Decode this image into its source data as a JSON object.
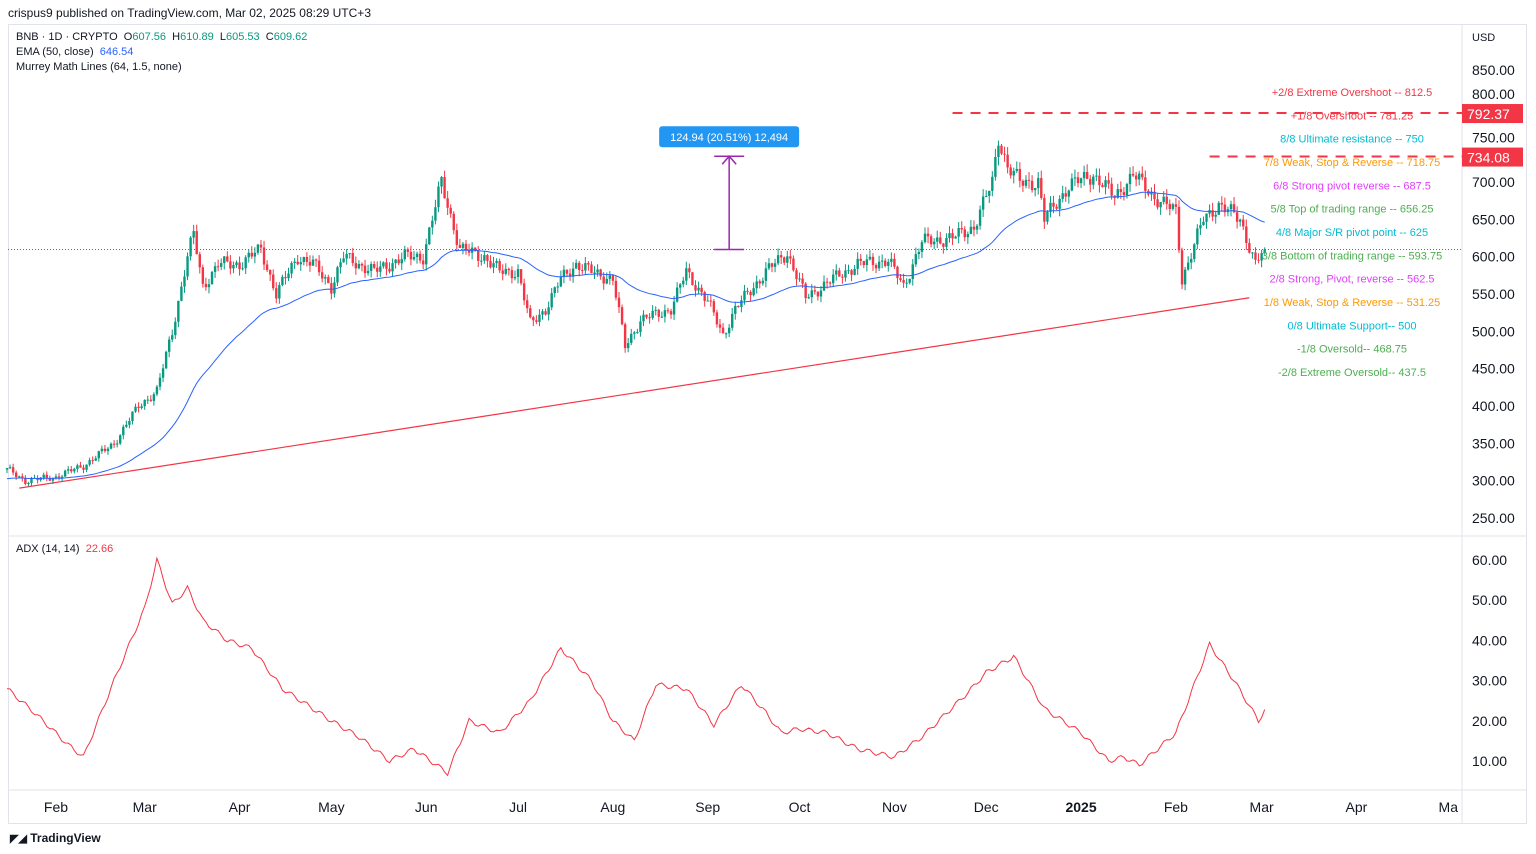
{
  "header": {
    "published": "crispus9 published on TradingView.com, Mar 02, 2025 08:29 UTC+3"
  },
  "legend": {
    "symbol": "BNB · 1D · CRYPTO",
    "o_label": "O",
    "o": "607.56",
    "h_label": "H",
    "h": "610.89",
    "l_label": "L",
    "l": "605.53",
    "c_label": "C",
    "c": "609.62",
    "ema_label": "EMA (50, close)",
    "ema_value": "646.54",
    "murrey_label": "Murrey Math Lines (64, 1.5, none)",
    "adx_label": "ADX (14, 14)",
    "adx_value": "22.66"
  },
  "currency": "USD",
  "footer": {
    "brand": "TradingView"
  },
  "colors": {
    "up": "#089981",
    "down": "#f23645",
    "ema": "#2962ff",
    "adx": "#f23645",
    "trend": "#f23645",
    "measure": "#9c27b0",
    "measure_label_bg": "#2196f3"
  },
  "chart_data": [
    {
      "type": "candlestick",
      "title": "BNB · 1D · CRYPTO",
      "ylim": [
        230,
        870
      ],
      "y_ticks": [
        "850.00",
        "800.00",
        "750.00",
        "700.00",
        "650.00",
        "600.00",
        "550.00",
        "500.00",
        "450.00",
        "400.00",
        "350.00",
        "300.00",
        "250.00"
      ],
      "x_ticks": [
        {
          "label": "Feb",
          "date": "2024-02-01"
        },
        {
          "label": "Mar",
          "date": "2024-03-01"
        },
        {
          "label": "Apr",
          "date": "2024-04-01"
        },
        {
          "label": "May",
          "date": "2024-05-01"
        },
        {
          "label": "Jun",
          "date": "2024-06-01"
        },
        {
          "label": "Jul",
          "date": "2024-07-01"
        },
        {
          "label": "Aug",
          "date": "2024-08-01"
        },
        {
          "label": "Sep",
          "date": "2024-09-01"
        },
        {
          "label": "Oct",
          "date": "2024-10-01"
        },
        {
          "label": "Nov",
          "date": "2024-11-01"
        },
        {
          "label": "Dec",
          "date": "2024-12-01"
        },
        {
          "label": "2025",
          "date": "2025-01-01",
          "bold": true
        },
        {
          "label": "Feb",
          "date": "2025-02-01"
        },
        {
          "label": "Mar",
          "date": "2025-03-01"
        },
        {
          "label": "Apr",
          "date": "2025-04-01"
        },
        {
          "label": "Ma",
          "date": "2025-05-01"
        }
      ],
      "close_keypoints": [
        [
          "2024-01-16",
          315
        ],
        [
          "2024-01-22",
          300
        ],
        [
          "2024-02-01",
          305
        ],
        [
          "2024-02-10",
          320
        ],
        [
          "2024-02-20",
          350
        ],
        [
          "2024-02-28",
          400
        ],
        [
          "2024-03-05",
          420
        ],
        [
          "2024-03-10",
          500
        ],
        [
          "2024-03-15",
          600
        ],
        [
          "2024-03-17",
          630
        ],
        [
          "2024-03-20",
          560
        ],
        [
          "2024-03-25",
          590
        ],
        [
          "2024-04-01",
          590
        ],
        [
          "2024-04-08",
          610
        ],
        [
          "2024-04-13",
          550
        ],
        [
          "2024-04-20",
          600
        ],
        [
          "2024-04-25",
          590
        ],
        [
          "2024-05-01",
          560
        ],
        [
          "2024-05-05",
          600
        ],
        [
          "2024-05-15",
          580
        ],
        [
          "2024-05-25",
          600
        ],
        [
          "2024-05-31",
          600
        ],
        [
          "2024-06-06",
          700
        ],
        [
          "2024-06-10",
          640
        ],
        [
          "2024-06-12",
          610
        ],
        [
          "2024-06-20",
          600
        ],
        [
          "2024-06-25",
          580
        ],
        [
          "2024-07-01",
          580
        ],
        [
          "2024-07-05",
          510
        ],
        [
          "2024-07-10",
          530
        ],
        [
          "2024-07-15",
          570
        ],
        [
          "2024-07-20",
          590
        ],
        [
          "2024-07-25",
          580
        ],
        [
          "2024-08-01",
          570
        ],
        [
          "2024-08-05",
          480
        ],
        [
          "2024-08-10",
          515
        ],
        [
          "2024-08-20",
          530
        ],
        [
          "2024-08-25",
          580
        ],
        [
          "2024-09-01",
          540
        ],
        [
          "2024-09-06",
          495
        ],
        [
          "2024-09-10",
          530
        ],
        [
          "2024-09-20",
          580
        ],
        [
          "2024-09-27",
          605
        ],
        [
          "2024-10-03",
          545
        ],
        [
          "2024-10-10",
          565
        ],
        [
          "2024-10-20",
          590
        ],
        [
          "2024-10-30",
          595
        ],
        [
          "2024-11-04",
          560
        ],
        [
          "2024-11-10",
          620
        ],
        [
          "2024-11-20",
          625
        ],
        [
          "2024-11-27",
          640
        ],
        [
          "2024-12-03",
          700
        ],
        [
          "2024-12-05",
          760
        ],
        [
          "2024-12-08",
          720
        ],
        [
          "2024-12-12",
          700
        ],
        [
          "2024-12-18",
          700
        ],
        [
          "2024-12-20",
          650
        ],
        [
          "2024-12-28",
          695
        ],
        [
          "2025-01-05",
          710
        ],
        [
          "2025-01-12",
          680
        ],
        [
          "2025-01-18",
          710
        ],
        [
          "2025-01-25",
          680
        ],
        [
          "2025-02-01",
          660
        ],
        [
          "2025-02-03",
          570
        ],
        [
          "2025-02-10",
          650
        ],
        [
          "2025-02-15",
          670
        ],
        [
          "2025-02-22",
          650
        ],
        [
          "2025-02-27",
          590
        ],
        [
          "2025-03-02",
          609.62
        ]
      ],
      "current_price": 609.62,
      "price_tags": [
        {
          "value": 792.37,
          "label": "792.37",
          "from": "2024-11-20"
        },
        {
          "value": 734.08,
          "label": "734.08",
          "from": "2025-02-12"
        }
      ],
      "trendline": [
        [
          "2024-01-20",
          290
        ],
        [
          "2025-02-25",
          545
        ]
      ],
      "measure": {
        "date": "2024-09-08",
        "from": 609.62,
        "to": 734.56,
        "label": "124.94 (20.51%) 12,494"
      },
      "murrey_lines": [
        {
          "label": "+2/8 Extreme Overshoot --  812.5",
          "value": 812.5,
          "color": "#f23645"
        },
        {
          "label": "+1/8 Overshoot --  781.25",
          "value": 781.25,
          "color": "#f23645"
        },
        {
          "label": "8/8 Ultimate resistance --  750",
          "value": 750,
          "color": "#00bcd4"
        },
        {
          "label": "7/8 Weak, Stop & Reverse --  718.75",
          "value": 718.75,
          "color": "#ff9800"
        },
        {
          "label": "6/8 Strong pivot reverse --  687.5",
          "value": 687.5,
          "color": "#e040fb"
        },
        {
          "label": "5/8 Top of trading range --  656.25",
          "value": 656.25,
          "color": "#4caf50"
        },
        {
          "label": "4/8 Major S/R pivot point --  625",
          "value": 625,
          "color": "#00bcd4"
        },
        {
          "label": "3/8 Bottom of trading range --  593.75",
          "value": 593.75,
          "color": "#4caf50"
        },
        {
          "label": "2/8 Strong, Pivot, reverse --  562.5",
          "value": 562.5,
          "color": "#e040fb"
        },
        {
          "label": "1/8 Weak, Stop & Reverse --  531.25",
          "value": 531.25,
          "color": "#ff9800"
        },
        {
          "label": "0/8 Ultimate Support--  500",
          "value": 500,
          "color": "#00bcd4"
        },
        {
          "label": "-1/8 Oversold--  468.75",
          "value": 468.75,
          "color": "#4caf50"
        },
        {
          "label": "-2/8 Extreme Oversold--  437.5",
          "value": 437.5,
          "color": "#4caf50"
        }
      ]
    },
    {
      "type": "line",
      "title": "ADX (14, 14)",
      "ylim": [
        5,
        63
      ],
      "y_ticks": [
        "60.00",
        "50.00",
        "40.00",
        "30.00",
        "20.00",
        "10.00"
      ],
      "keypoints": [
        [
          "2024-01-16",
          28
        ],
        [
          "2024-01-25",
          22
        ],
        [
          "2024-02-05",
          14
        ],
        [
          "2024-02-10",
          11
        ],
        [
          "2024-02-20",
          30
        ],
        [
          "2024-03-01",
          48
        ],
        [
          "2024-03-05",
          60
        ],
        [
          "2024-03-10",
          49
        ],
        [
          "2024-03-15",
          53
        ],
        [
          "2024-03-20",
          45
        ],
        [
          "2024-03-28",
          40
        ],
        [
          "2024-04-05",
          38
        ],
        [
          "2024-04-15",
          28
        ],
        [
          "2024-05-01",
          20
        ],
        [
          "2024-05-10",
          16
        ],
        [
          "2024-05-20",
          10
        ],
        [
          "2024-05-28",
          13
        ],
        [
          "2024-06-08",
          7
        ],
        [
          "2024-06-15",
          20
        ],
        [
          "2024-06-25",
          17
        ],
        [
          "2024-07-05",
          25
        ],
        [
          "2024-07-15",
          38
        ],
        [
          "2024-07-25",
          30
        ],
        [
          "2024-08-01",
          20
        ],
        [
          "2024-08-08",
          15
        ],
        [
          "2024-08-15",
          29
        ],
        [
          "2024-08-25",
          28
        ],
        [
          "2024-09-03",
          19
        ],
        [
          "2024-09-12",
          29
        ],
        [
          "2024-09-20",
          22
        ],
        [
          "2024-09-25",
          17
        ],
        [
          "2024-10-01",
          18
        ],
        [
          "2024-10-10",
          17
        ],
        [
          "2024-10-20",
          13
        ],
        [
          "2024-11-01",
          11
        ],
        [
          "2024-11-10",
          16
        ],
        [
          "2024-11-25",
          27
        ],
        [
          "2024-12-01",
          32
        ],
        [
          "2024-12-10",
          36
        ],
        [
          "2024-12-20",
          23
        ],
        [
          "2025-01-01",
          17
        ],
        [
          "2025-01-10",
          10
        ],
        [
          "2025-01-15",
          11
        ],
        [
          "2025-01-20",
          9
        ],
        [
          "2025-02-01",
          17
        ],
        [
          "2025-02-12",
          39
        ],
        [
          "2025-02-20",
          30
        ],
        [
          "2025-02-28",
          20
        ],
        [
          "2025-03-02",
          22.66
        ]
      ]
    }
  ]
}
